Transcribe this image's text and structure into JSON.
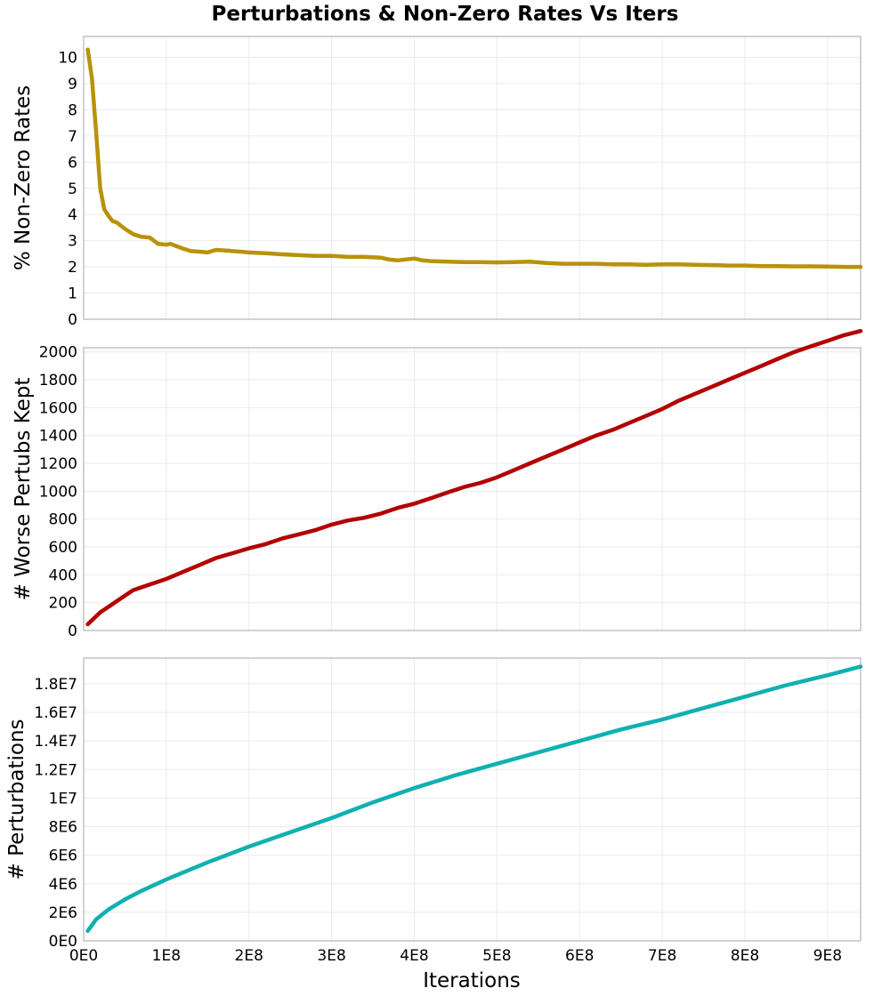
{
  "chart_data": [
    {
      "type": "line",
      "title": "Perturbations & Non-Zero Rates Vs Iters",
      "xlabel": "Iterations",
      "ylabel": "% Non-Zero Rates",
      "xlim": [
        0,
        940000000
      ],
      "ylim": [
        0,
        10.8
      ],
      "yticks": [
        0,
        1,
        2,
        3,
        4,
        5,
        6,
        7,
        8,
        9,
        10
      ],
      "ytick_labels": [
        "0",
        "1",
        "2",
        "3",
        "4",
        "5",
        "6",
        "7",
        "8",
        "9",
        "10"
      ],
      "grid": true,
      "color": "#b8920a",
      "series": [
        {
          "name": "% Non-Zero Rates",
          "x": [
            5000000.0,
            10000000.0,
            15000000.0,
            20000000.0,
            25000000.0,
            30000000.0,
            35000000.0,
            40000000.0,
            50000000.0,
            55000000.0,
            60000000.0,
            70000000.0,
            80000000.0,
            90000000.0,
            100000000.0,
            105000000.0,
            110000000.0,
            120000000.0,
            130000000.0,
            140000000.0,
            150000000.0,
            160000000.0,
            175000000.0,
            180000000.0,
            190000000.0,
            200000000.0,
            220000000.0,
            240000000.0,
            260000000.0,
            280000000.0,
            300000000.0,
            320000000.0,
            340000000.0,
            360000000.0,
            370000000.0,
            380000000.0,
            400000000.0,
            410000000.0,
            420000000.0,
            440000000.0,
            460000000.0,
            480000000.0,
            500000000.0,
            520000000.0,
            540000000.0,
            560000000.0,
            580000000.0,
            600000000.0,
            620000000.0,
            640000000.0,
            660000000.0,
            680000000.0,
            700000000.0,
            720000000.0,
            740000000.0,
            760000000.0,
            780000000.0,
            800000000.0,
            820000000.0,
            840000000.0,
            860000000.0,
            880000000.0,
            900000000.0,
            920000000.0,
            940000000.0
          ],
          "y": [
            10.3,
            9.2,
            7.2,
            5.0,
            4.2,
            3.95,
            3.75,
            3.7,
            3.45,
            3.35,
            3.25,
            3.15,
            3.12,
            2.88,
            2.85,
            2.88,
            2.82,
            2.7,
            2.6,
            2.58,
            2.55,
            2.65,
            2.62,
            2.6,
            2.58,
            2.55,
            2.52,
            2.48,
            2.45,
            2.42,
            2.42,
            2.38,
            2.38,
            2.35,
            2.28,
            2.25,
            2.32,
            2.25,
            2.22,
            2.2,
            2.18,
            2.18,
            2.17,
            2.18,
            2.2,
            2.15,
            2.12,
            2.12,
            2.12,
            2.1,
            2.1,
            2.08,
            2.1,
            2.1,
            2.08,
            2.07,
            2.05,
            2.05,
            2.03,
            2.03,
            2.02,
            2.02,
            2.01,
            2.0,
            2.0
          ]
        }
      ]
    },
    {
      "type": "line",
      "xlabel": "",
      "ylabel": "# Worse Pertubs Kept",
      "xlim": [
        0,
        940000000
      ],
      "ylim": [
        0,
        2030
      ],
      "yticks": [
        0,
        200,
        400,
        600,
        800,
        1000,
        1200,
        1400,
        1600,
        1800,
        2000
      ],
      "ytick_labels": [
        "0",
        "200",
        "400",
        "600",
        "800",
        "1000",
        "1200",
        "1400",
        "1600",
        "1800",
        "2000"
      ],
      "grid": true,
      "color": "#b30000",
      "series": [
        {
          "name": "# Worse Pertubs Kept",
          "x": [
            5000000.0,
            20000000.0,
            35000000.0,
            50000000.0,
            60000000.0,
            80000000.0,
            100000000.0,
            120000000.0,
            140000000.0,
            160000000.0,
            180000000.0,
            200000000.0,
            220000000.0,
            240000000.0,
            260000000.0,
            280000000.0,
            300000000.0,
            320000000.0,
            340000000.0,
            360000000.0,
            380000000.0,
            400000000.0,
            420000000.0,
            440000000.0,
            460000000.0,
            480000000.0,
            500000000.0,
            520000000.0,
            540000000.0,
            560000000.0,
            580000000.0,
            600000000.0,
            620000000.0,
            640000000.0,
            660000000.0,
            680000000.0,
            700000000.0,
            720000000.0,
            740000000.0,
            760000000.0,
            780000000.0,
            800000000.0,
            820000000.0,
            840000000.0,
            860000000.0,
            880000000.0,
            900000000.0,
            920000000.0,
            940000000.0
          ],
          "y": [
            45,
            130,
            190,
            250,
            290,
            330,
            370,
            420,
            470,
            520,
            555,
            590,
            620,
            660,
            690,
            720,
            760,
            790,
            810,
            840,
            880,
            910,
            950,
            990,
            1030,
            1060,
            1100,
            1150,
            1200,
            1250,
            1300,
            1350,
            1400,
            1440,
            1490,
            1540,
            1590,
            1650,
            1700,
            1750,
            1800,
            1850,
            1900,
            1950,
            2000,
            2040,
            2080,
            2120,
            2150
          ]
        }
      ]
    },
    {
      "type": "line",
      "xlabel": "Iterations",
      "ylabel": "# Perturbations",
      "xlim": [
        0,
        940000000
      ],
      "ylim": [
        0,
        19800000
      ],
      "yticks": [
        0,
        2000000,
        4000000,
        6000000,
        8000000,
        10000000,
        12000000,
        14000000,
        16000000,
        18000000
      ],
      "ytick_labels": [
        "0E0",
        "2E6",
        "4E6",
        "6E6",
        "8E6",
        "1E7",
        "1.2E7",
        "1.4E7",
        "1.6E7",
        "1.8E7"
      ],
      "xticks": [
        0,
        100000000,
        200000000,
        300000000,
        400000000,
        500000000,
        600000000,
        700000000,
        800000000,
        900000000
      ],
      "xtick_labels": [
        "0E0",
        "1E8",
        "2E8",
        "3E8",
        "4E8",
        "5E8",
        "6E8",
        "7E8",
        "8E8",
        "9E8"
      ],
      "grid": true,
      "color": "#10b0b0",
      "series": [
        {
          "name": "# Perturbations",
          "x": [
            5000000.0,
            15000000.0,
            30000000.0,
            50000000.0,
            70000000.0,
            100000000.0,
            150000000.0,
            200000000.0,
            250000000.0,
            300000000.0,
            350000000.0,
            400000000.0,
            450000000.0,
            500000000.0,
            550000000.0,
            600000000.0,
            650000000.0,
            700000000.0,
            750000000.0,
            800000000.0,
            850000000.0,
            900000000.0,
            940000000.0
          ],
          "y": [
            700000,
            1500000,
            2200000,
            2900000,
            3500000,
            4300000,
            5500000,
            6600000,
            7600000,
            8600000,
            9700000,
            10700000,
            11600000,
            12400000,
            13200000,
            14000000,
            14800000,
            15500000,
            16300000,
            17100000,
            17900000,
            18600000,
            19200000
          ]
        }
      ]
    }
  ]
}
